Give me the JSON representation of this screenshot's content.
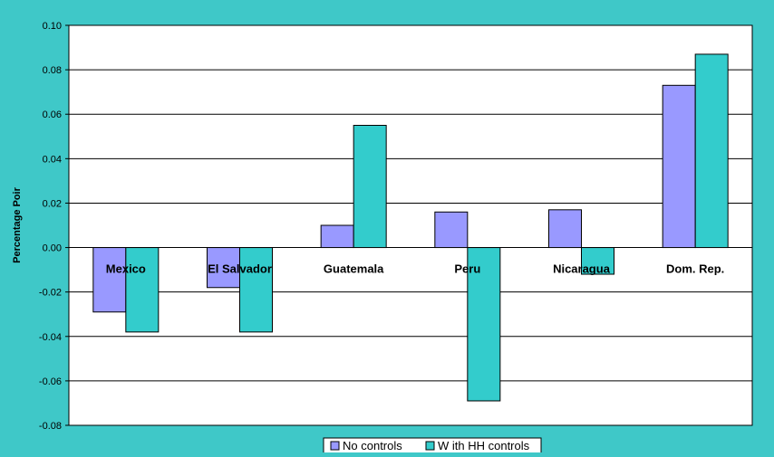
{
  "chart_data": {
    "type": "bar",
    "categories": [
      "Mexico",
      "El Salvador",
      "Guatemala",
      "Peru",
      "Nicaragua",
      "Dom. Rep."
    ],
    "series": [
      {
        "name": "No controls",
        "values": [
          -0.029,
          -0.018,
          0.01,
          0.016,
          0.017,
          0.073
        ],
        "color": "#9999ff"
      },
      {
        "name": "W ith HH controls",
        "values": [
          -0.038,
          -0.038,
          0.055,
          -0.069,
          -0.012,
          0.087
        ],
        "color": "#33cccc"
      }
    ],
    "ylabel": "Percentage Poir",
    "ylim": [
      -0.08,
      0.1
    ],
    "yticks": [
      "-0.08",
      "-0.06",
      "-0.04",
      "-0.02",
      "0.00",
      "0.02",
      "0.04",
      "0.06",
      "0.08",
      "0.10"
    ],
    "grid": true,
    "legend": "bottom-center",
    "background_color": "#3fc8c8",
    "plot_background": "#ffffff"
  }
}
